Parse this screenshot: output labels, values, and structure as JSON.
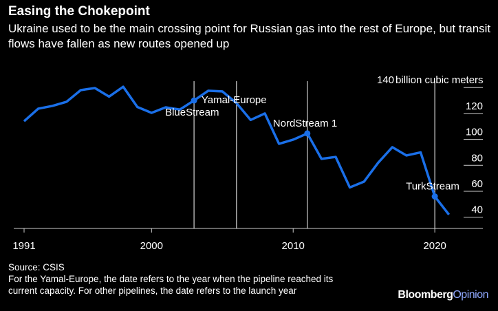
{
  "header": {
    "title": "Easing the Chokepoint",
    "subtitle": "Ukraine used to be the main crossing point for Russian gas into the rest of Europe, but transit flows have fallen as new routes opened up"
  },
  "footer": {
    "source": "Source: CSIS",
    "note_line1": "For the Yamal-Europe, the date refers to the year when the pipeline reached its",
    "note_line2": "current capacity. For other pipelines, the date refers to the launch year",
    "logo_main": "Bloomberg",
    "logo_accent": "Opinion"
  },
  "chart_data": {
    "type": "line",
    "title": "Easing the Chokepoint",
    "ylabel": "billion cubic meters",
    "xlabel": "",
    "x": [
      1991,
      1992,
      1993,
      1994,
      1995,
      1996,
      1997,
      1998,
      1999,
      2000,
      2001,
      2002,
      2003,
      2004,
      2005,
      2006,
      2007,
      2008,
      2009,
      2010,
      2011,
      2012,
      2013,
      2014,
      2015,
      2016,
      2017,
      2018,
      2019,
      2020,
      2021
    ],
    "series": [
      {
        "name": "Gas transit via Ukraine",
        "color": "#1a6fe8",
        "values": [
          114,
          123.7,
          125.8,
          129,
          138,
          139.6,
          133,
          140.6,
          125,
          120.5,
          124.7,
          123,
          130,
          137.5,
          137,
          128,
          115,
          120,
          96.6,
          99.8,
          104.6,
          85,
          86.5,
          63,
          67.4,
          82,
          94,
          87.6,
          90,
          56,
          42
        ]
      }
    ],
    "xticks": [
      1991,
      2000,
      2010,
      2020
    ],
    "yticks": [
      140,
      120,
      100,
      80,
      60,
      40
    ],
    "ytick_top_label_suffix": "billion cubic meters",
    "xlim": [
      1991,
      2021
    ],
    "ylim": [
      31,
      140
    ],
    "annotations": [
      {
        "label": "BlueStream",
        "year": 2003,
        "marker": true
      },
      {
        "label": "Yamal-Europe",
        "year": 2006,
        "marker": false
      },
      {
        "label": "NordStream 1",
        "year": 2011,
        "marker": true
      },
      {
        "label": "TurkStream",
        "year": 2020,
        "marker": true
      }
    ],
    "legend": "none"
  }
}
